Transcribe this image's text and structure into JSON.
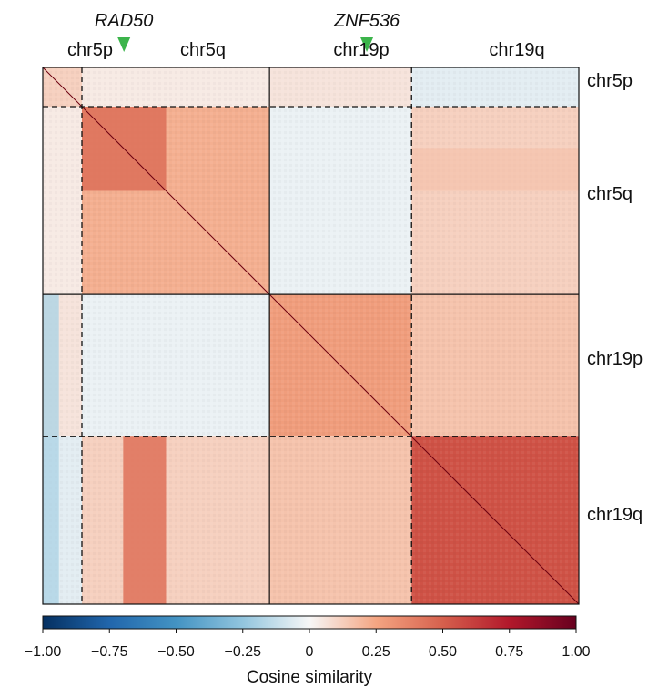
{
  "chart_data": {
    "type": "heatmap",
    "title": "",
    "xlabel": "",
    "ylabel": "",
    "blocks": [
      {
        "name": "chr5p",
        "fraction": 0.073
      },
      {
        "name": "chr5q",
        "fraction": 0.35
      },
      {
        "name": "chr19p",
        "fraction": 0.265
      },
      {
        "name": "chr19q",
        "fraction": 0.312
      }
    ],
    "top_labels": [
      "chr5p",
      "chr5q",
      "chr19p",
      "chr19q"
    ],
    "right_labels": [
      "chr5p",
      "chr5q",
      "chr19p",
      "chr19q"
    ],
    "markers": [
      {
        "gene": "RAD50",
        "block": "chr5q",
        "position_fraction": 0.224
      },
      {
        "gene": "ZNF536",
        "block": "chr19p",
        "position_fraction": 0.685
      }
    ],
    "mean_similarity": [
      [
        0.12,
        0.04,
        0.06,
        -0.05
      ],
      [
        0.04,
        0.22,
        -0.03,
        0.12
      ],
      [
        0.06,
        -0.03,
        0.28,
        0.16
      ],
      [
        -0.05,
        0.12,
        0.16,
        0.55
      ]
    ],
    "sub_features": [
      {
        "region": "chr5q-internal",
        "range": [
          0.073,
          0.23
        ],
        "mean": 0.45,
        "description": "strong positive block near RAD50"
      },
      {
        "region": "chr19q-vs-chr5q",
        "range": [
          0.15,
          0.23
        ],
        "mean": 0.42,
        "description": "positive vertical band"
      },
      {
        "region": "chr5p-vs-chr19",
        "range": [
          0.0,
          0.03
        ],
        "mean": -0.18,
        "description": "negative vertical band"
      }
    ],
    "colorbar": {
      "label": "Cosine similarity",
      "range": [
        -1.0,
        1.0
      ],
      "ticks": [
        "−1.00",
        "−0.75",
        "−0.50",
        "−0.25",
        "0",
        "0.25",
        "0.50",
        "0.75",
        "1.00"
      ],
      "tick_values": [
        -1.0,
        -0.75,
        -0.5,
        -0.25,
        0,
        0.25,
        0.5,
        0.75,
        1.0
      ],
      "colors": [
        "#053061",
        "#2166ac",
        "#4393c3",
        "#92c5de",
        "#f7f7f7",
        "#f4a582",
        "#d6604d",
        "#b2182b",
        "#67001f"
      ]
    },
    "marker_color": "#3cb44b",
    "arm_divider_style": "dashed",
    "chromosome_divider_style": "solid"
  }
}
